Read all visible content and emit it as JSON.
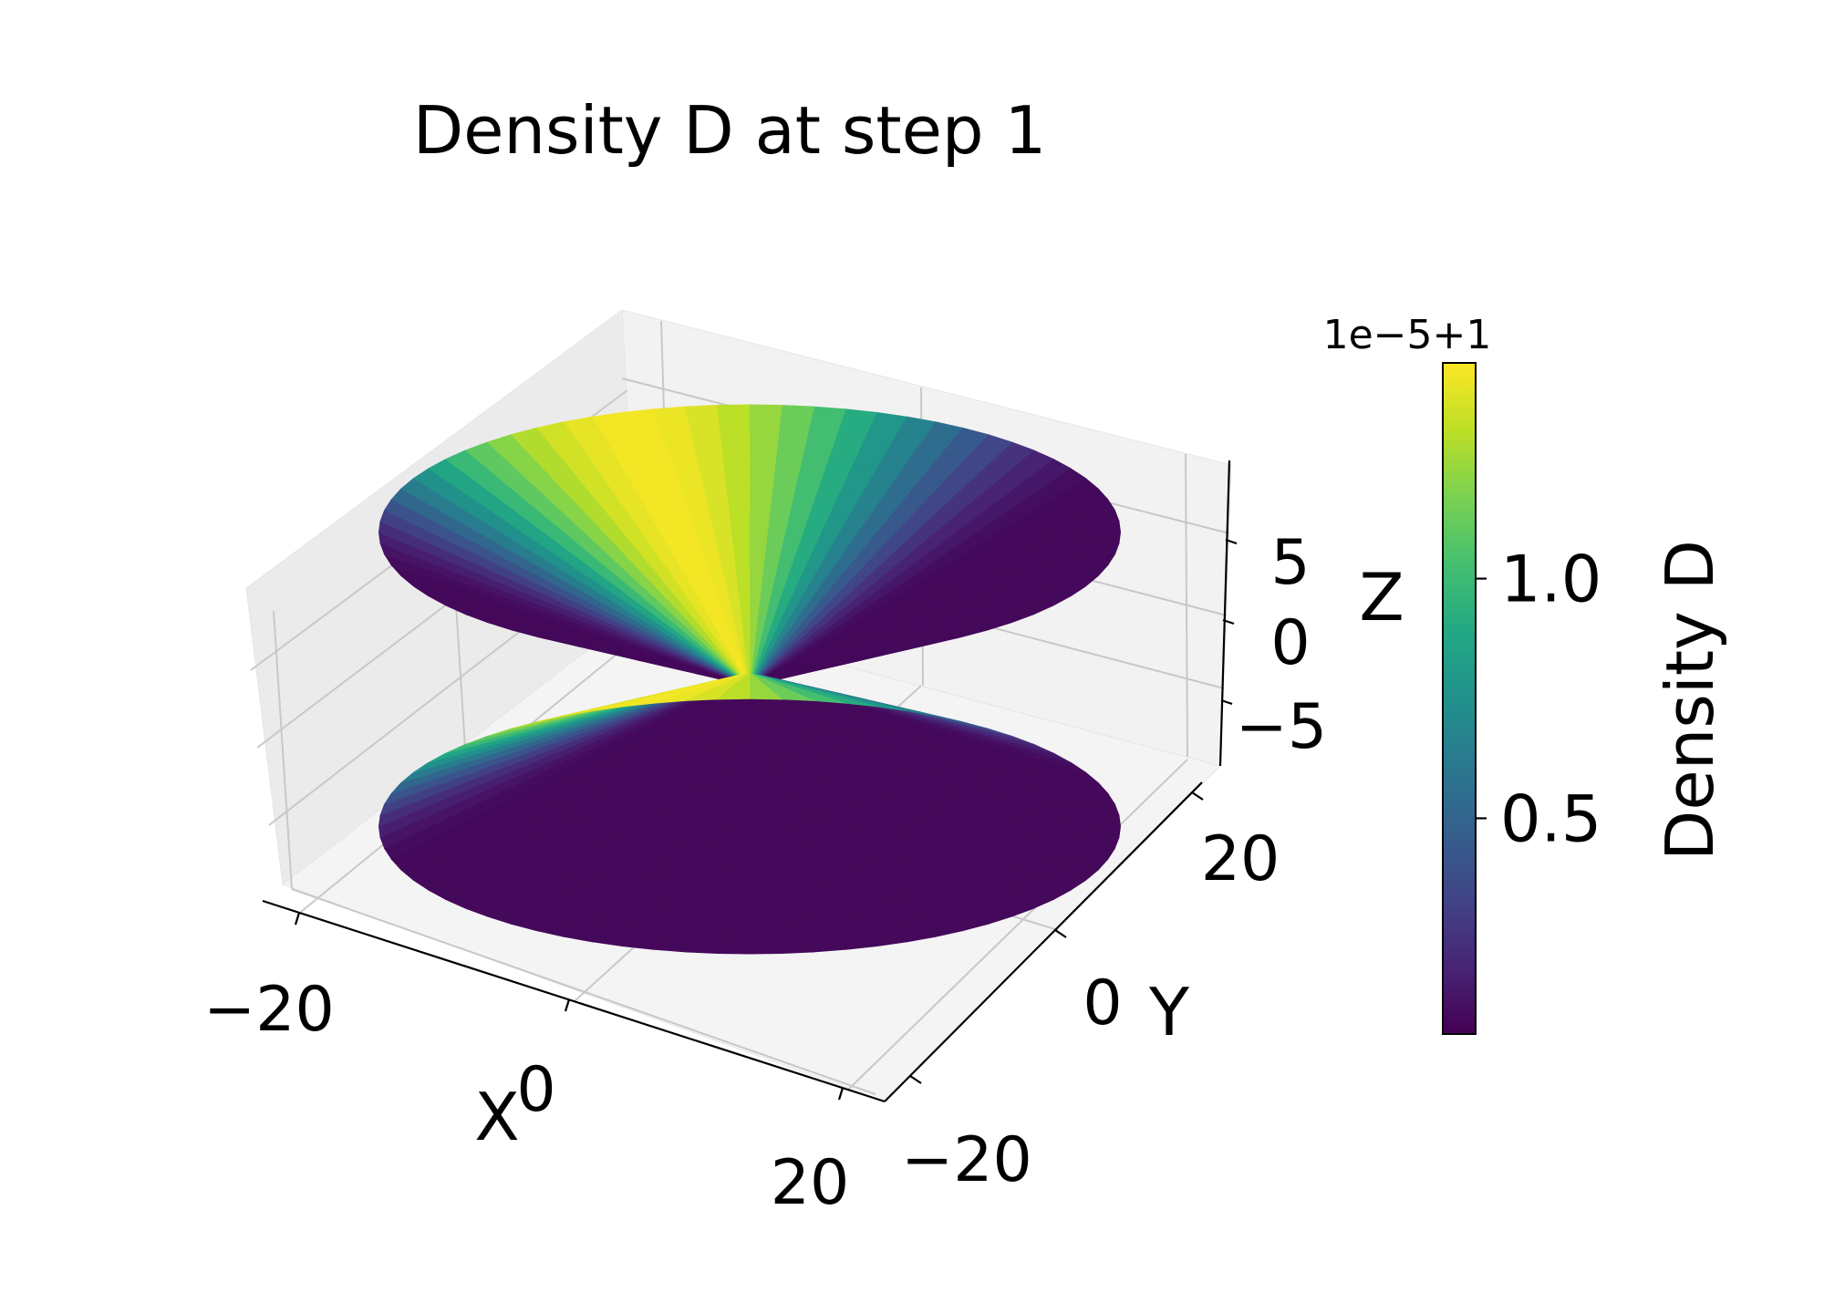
{
  "chart_data": {
    "type": "surface3d",
    "title": "Density D at step 1",
    "xlabel": "X",
    "ylabel": "Y",
    "zlabel": "Z",
    "x_ticks": [
      "−20",
      "0",
      "20"
    ],
    "y_ticks": [
      "−20",
      "0",
      "20"
    ],
    "z_ticks": [
      "−5",
      "0",
      "5"
    ],
    "colorbar": {
      "label": "Density D",
      "offset_text": "1e−5+1",
      "ticks": [
        "0.5",
        "1.0"
      ],
      "tick_values": [
        0.5,
        1.0
      ],
      "range": [
        0.05,
        1.45
      ],
      "colormap": "viridis"
    },
    "surface": {
      "shape": "hourglass",
      "r_range": [
        1,
        23
      ],
      "z_range": [
        -7.5,
        7.5
      ],
      "value_offset": 1,
      "value_scale": 1e-05
    },
    "grid": true
  }
}
